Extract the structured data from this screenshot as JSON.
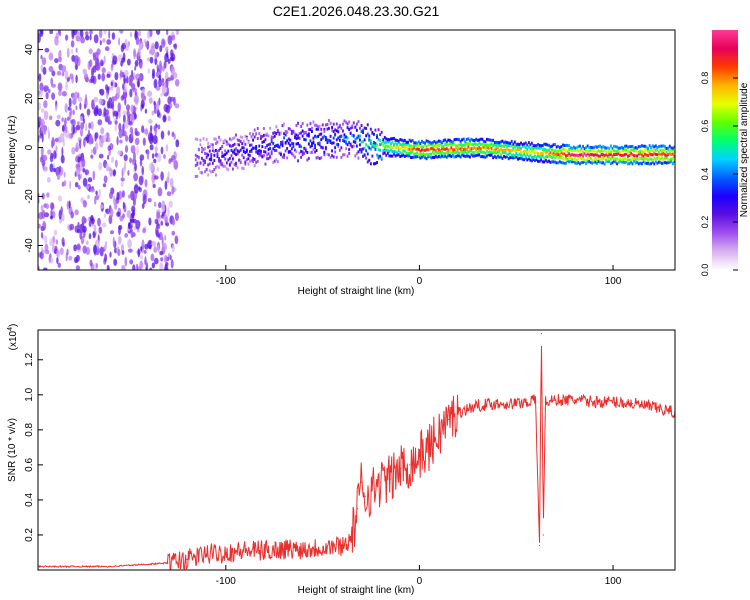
{
  "title": "C2E1.2026.048.23.30.G21",
  "colors": {
    "snr_line": "#e8302e",
    "axis": "#000000",
    "colormap": [
      "#ffffff",
      "#d9b3f0",
      "#a050f0",
      "#5a10e0",
      "#1c00ff",
      "#0060ff",
      "#00d2ff",
      "#00ff70",
      "#60ff00",
      "#e6ff00",
      "#ffb400",
      "#ff3c00",
      "#e6005a",
      "#ff3c96"
    ]
  },
  "chart_data": [
    {
      "type": "heatmap",
      "panel": "spectrogram",
      "xlabel": "Height of straight line (km)",
      "ylabel": "Frequency (Hz)",
      "xlim": [
        -197,
        132
      ],
      "ylim": [
        -50,
        48
      ],
      "xticks": [
        -100,
        0,
        100
      ],
      "xtick_labels": [
        "-100",
        "0",
        "100"
      ],
      "yticks": [
        -40,
        -20,
        0,
        20,
        40
      ],
      "ytick_labels": [
        "-40",
        "-20",
        "0",
        "20",
        "40"
      ],
      "colorbar": {
        "label": "Normalized spectral amplitude",
        "range": [
          0,
          1
        ],
        "ticks": [
          0,
          0.2,
          0.4,
          0.6,
          0.8
        ],
        "tick_labels": [
          "0.0",
          "0.2",
          "0.4",
          "0.6",
          "0.8"
        ]
      },
      "ridge": [
        {
          "x": -197,
          "f": null,
          "amp": 0.05
        },
        {
          "x": -125,
          "f": null,
          "amp": 0.1
        },
        {
          "x": -110,
          "f": -4,
          "amp": 0.25
        },
        {
          "x": -90,
          "f": -1,
          "amp": 0.3
        },
        {
          "x": -70,
          "f": 2,
          "amp": 0.35
        },
        {
          "x": -50,
          "f": 3,
          "amp": 0.35
        },
        {
          "x": -35,
          "f": 4,
          "amp": 0.4
        },
        {
          "x": -25,
          "f": 1,
          "amp": 0.55
        },
        {
          "x": 0,
          "f": -1,
          "amp": 0.85
        },
        {
          "x": 30,
          "f": 0,
          "amp": 0.8
        },
        {
          "x": 60,
          "f": -2,
          "amp": 0.7
        },
        {
          "x": 80,
          "f": -3,
          "amp": 0.95
        },
        {
          "x": 100,
          "f": -3,
          "amp": 0.9
        },
        {
          "x": 132,
          "f": -3,
          "amp": 0.85
        }
      ]
    },
    {
      "type": "line",
      "panel": "snr",
      "xlabel": "Height of straight line (km)",
      "ylabel": "SNR (10 * v/v)",
      "y_multiplier": "(x10",
      "y_multiplier_exp": "4",
      "y_multiplier_close": ")",
      "xlim": [
        -197,
        132
      ],
      "ylim": [
        0,
        1.37
      ],
      "xticks": [
        -100,
        0,
        100
      ],
      "xtick_labels": [
        "-100",
        "0",
        "100"
      ],
      "yticks": [
        0.2,
        0.4,
        0.6,
        0.8,
        1.0,
        1.2
      ],
      "ytick_labels": [
        "0.2",
        "0.4",
        "0.6",
        "0.8",
        "1.0",
        "1.2"
      ],
      "series": [
        {
          "name": "SNR",
          "x": [
            -197,
            -160,
            -130,
            -120,
            -110,
            -100,
            -90,
            -80,
            -70,
            -60,
            -50,
            -40,
            -35,
            -32,
            -30,
            -28,
            -25,
            -20,
            -15,
            -10,
            -5,
            0,
            5,
            10,
            15,
            20,
            25,
            30,
            40,
            50,
            55,
            60,
            62,
            63,
            64,
            65,
            70,
            80,
            90,
            100,
            110,
            120,
            132
          ],
          "y": [
            0.02,
            0.02,
            0.04,
            0.06,
            0.09,
            0.1,
            0.11,
            0.11,
            0.12,
            0.12,
            0.13,
            0.14,
            0.18,
            0.35,
            0.5,
            0.42,
            0.45,
            0.5,
            0.52,
            0.58,
            0.6,
            0.65,
            0.7,
            0.78,
            0.86,
            0.9,
            0.92,
            0.94,
            0.95,
            0.95,
            0.96,
            0.97,
            0.14,
            1.35,
            0.2,
            0.96,
            0.97,
            0.97,
            0.96,
            0.96,
            0.95,
            0.93,
            0.9
          ]
        }
      ]
    }
  ]
}
